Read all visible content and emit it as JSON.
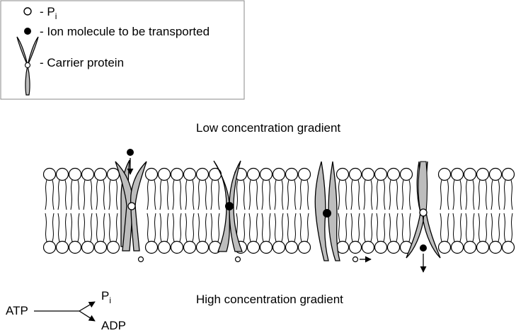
{
  "legend": {
    "pi_symbol": "P",
    "pi_subscript": "i",
    "pi_label_prefix": "- ",
    "ion_label": "- Ion molecule to be transported",
    "carrier_label": "- Carrier protein"
  },
  "membrane": {
    "top_label": "Low concentration gradient",
    "bottom_label": "High concentration gradient"
  },
  "reaction": {
    "reactant": "ATP",
    "product_pi": "P",
    "product_pi_sub": "i",
    "product_adp": "ADP"
  },
  "colors": {
    "protein_fill": "#bdbdbd",
    "stroke": "#000000",
    "legend_border": "#888888"
  }
}
